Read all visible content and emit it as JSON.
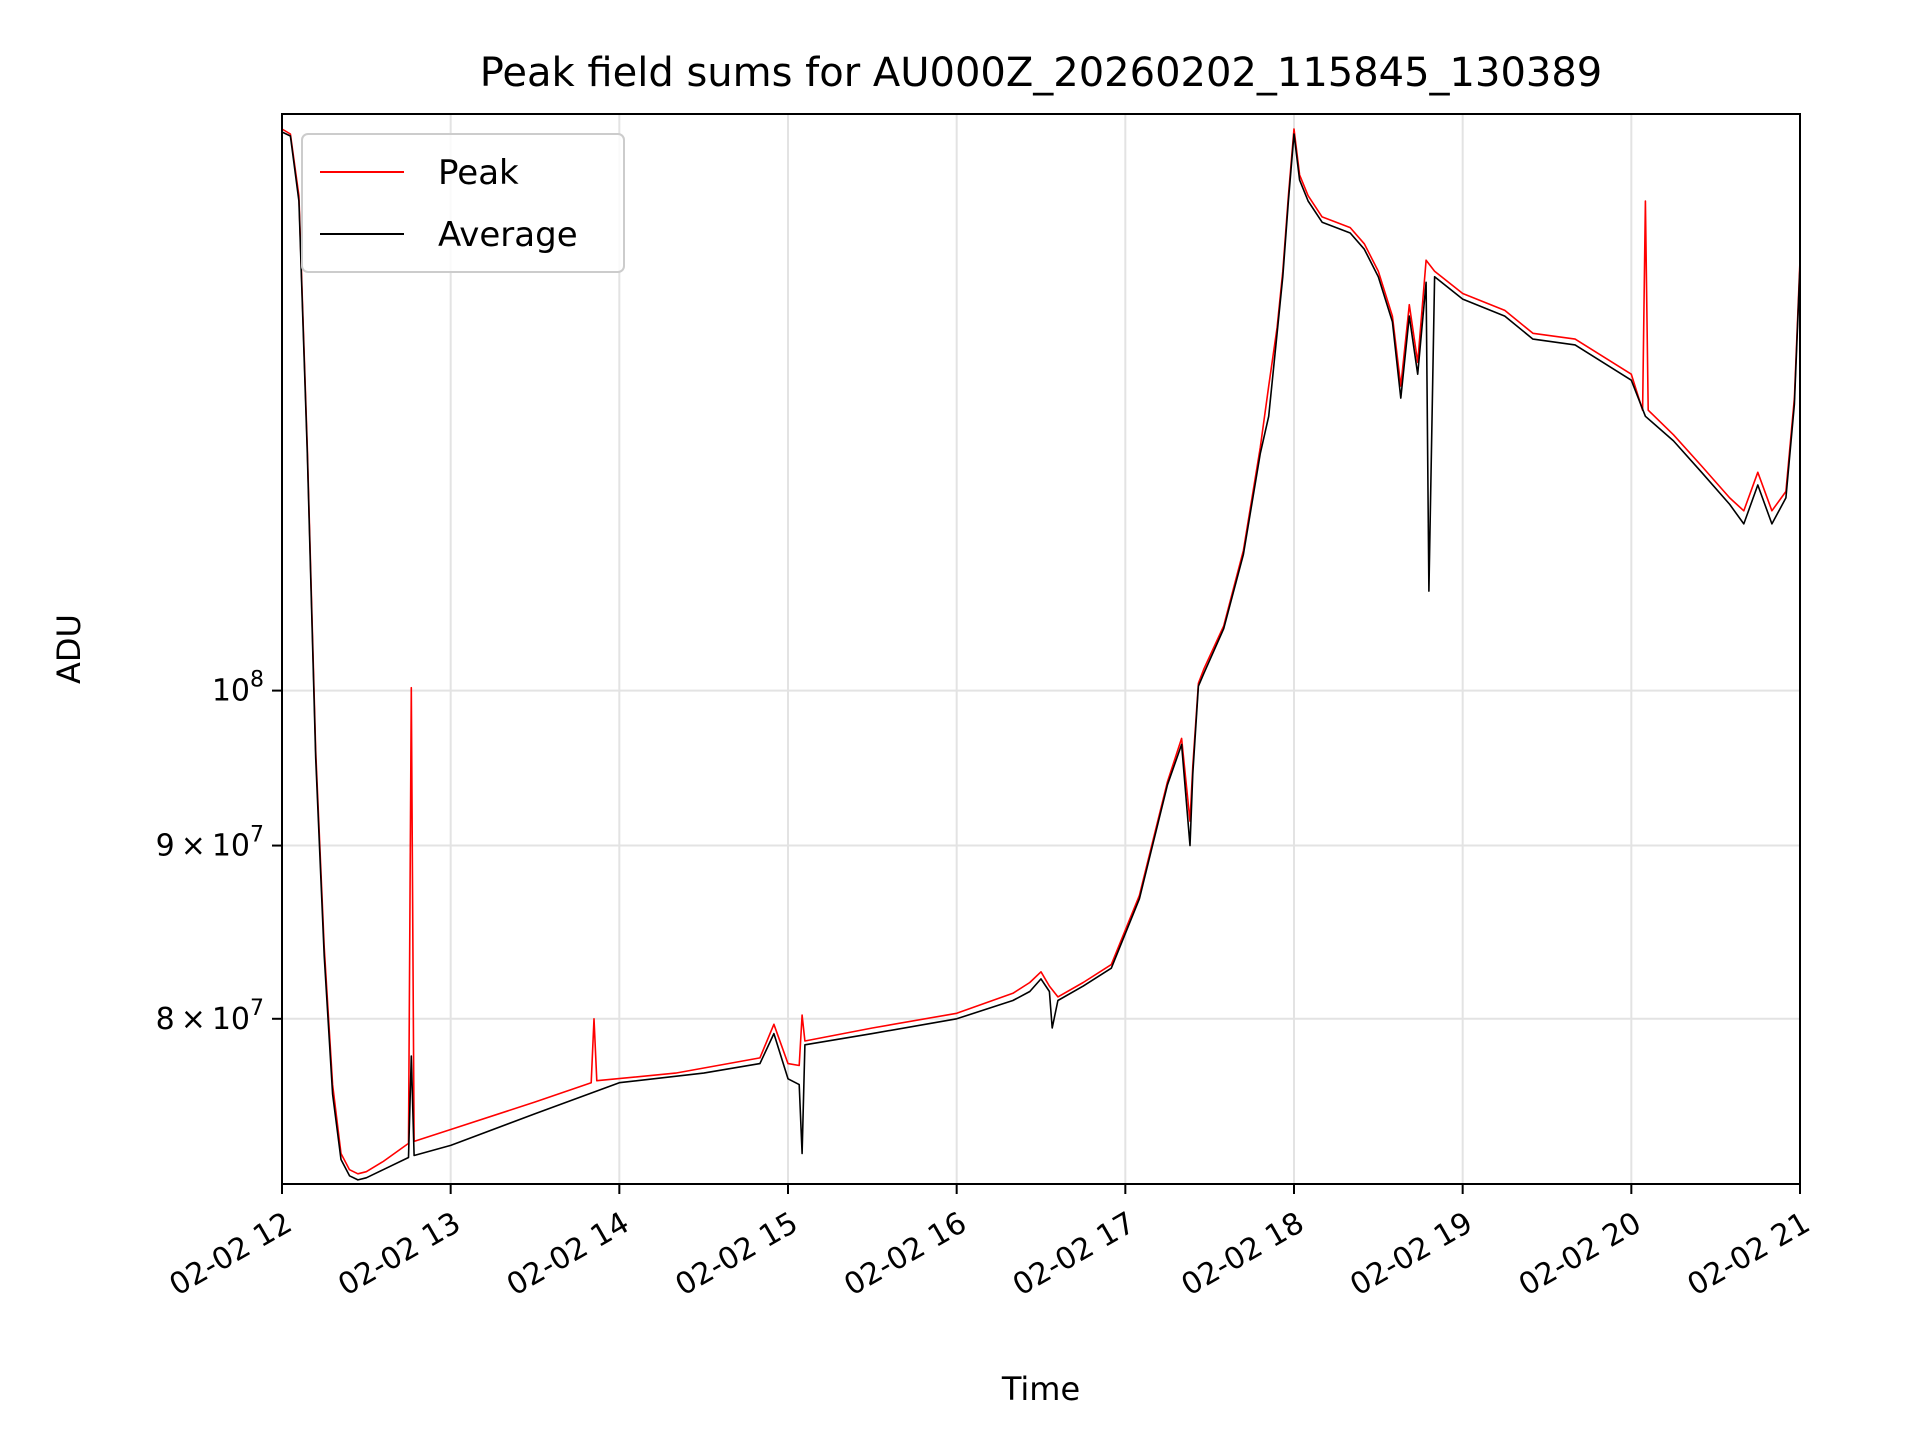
{
  "chart_data": {
    "type": "line",
    "title": "Peak field sums for AU000Z_20260202_115845_130389",
    "xlabel": "Time",
    "ylabel": "ADU",
    "yscale": "log",
    "grid": true,
    "legend_position": "top-left",
    "xlim": [
      "2026-02-02 12:00",
      "2026-02-02 21:00"
    ],
    "ylim": [
      71500000,
      148000000
    ],
    "x_ticks": [
      {
        "value": "2026-02-02 12:00",
        "label": "02-02 12"
      },
      {
        "value": "2026-02-02 13:00",
        "label": "02-02 13"
      },
      {
        "value": "2026-02-02 14:00",
        "label": "02-02 14"
      },
      {
        "value": "2026-02-02 15:00",
        "label": "02-02 15"
      },
      {
        "value": "2026-02-02 16:00",
        "label": "02-02 16"
      },
      {
        "value": "2026-02-02 17:00",
        "label": "02-02 17"
      },
      {
        "value": "2026-02-02 18:00",
        "label": "02-02 18"
      },
      {
        "value": "2026-02-02 19:00",
        "label": "02-02 19"
      },
      {
        "value": "2026-02-02 20:00",
        "label": "02-02 20"
      },
      {
        "value": "2026-02-02 21:00",
        "label": "02-02 21"
      }
    ],
    "y_ticks": [
      {
        "value": 80000000,
        "mantissa": "8",
        "exponent": "7"
      },
      {
        "value": 90000000,
        "mantissa": "9",
        "exponent": "7"
      },
      {
        "value": 100000000,
        "mantissa": "",
        "exponent": "8"
      }
    ],
    "series": [
      {
        "name": "Peak",
        "color": "#ff0000",
        "x": [
          "2026-02-02 12:00",
          "2026-02-02 12:03",
          "2026-02-02 12:06",
          "2026-02-02 12:09",
          "2026-02-02 12:12",
          "2026-02-02 12:15",
          "2026-02-02 12:18",
          "2026-02-02 12:21",
          "2026-02-02 12:24",
          "2026-02-02 12:27",
          "2026-02-02 12:30",
          "2026-02-02 12:36",
          "2026-02-02 12:45",
          "2026-02-02 12:46",
          "2026-02-02 12:47",
          "2026-02-02 13:00",
          "2026-02-02 13:30",
          "2026-02-02 13:50",
          "2026-02-02 13:51",
          "2026-02-02 13:52",
          "2026-02-02 14:20",
          "2026-02-02 14:50",
          "2026-02-02 14:55",
          "2026-02-02 15:00",
          "2026-02-02 15:04",
          "2026-02-02 15:05",
          "2026-02-02 15:06",
          "2026-02-02 15:30",
          "2026-02-02 16:00",
          "2026-02-02 16:20",
          "2026-02-02 16:26",
          "2026-02-02 16:30",
          "2026-02-02 16:33",
          "2026-02-02 16:36",
          "2026-02-02 16:45",
          "2026-02-02 16:55",
          "2026-02-02 17:05",
          "2026-02-02 17:15",
          "2026-02-02 17:20",
          "2026-02-02 17:23",
          "2026-02-02 17:24",
          "2026-02-02 17:26",
          "2026-02-02 17:28",
          "2026-02-02 17:35",
          "2026-02-02 17:42",
          "2026-02-02 17:48",
          "2026-02-02 17:51",
          "2026-02-02 17:54",
          "2026-02-02 17:56",
          "2026-02-02 17:58",
          "2026-02-02 18:00",
          "2026-02-02 18:02",
          "2026-02-02 18:05",
          "2026-02-02 18:10",
          "2026-02-02 18:15",
          "2026-02-02 18:20",
          "2026-02-02 18:25",
          "2026-02-02 18:30",
          "2026-02-02 18:35",
          "2026-02-02 18:38",
          "2026-02-02 18:41",
          "2026-02-02 18:44",
          "2026-02-02 18:47",
          "2026-02-02 18:50",
          "2026-02-02 19:00",
          "2026-02-02 19:15",
          "2026-02-02 19:25",
          "2026-02-02 19:40",
          "2026-02-02 20:00",
          "2026-02-02 20:04",
          "2026-02-02 20:05",
          "2026-02-02 20:06",
          "2026-02-02 20:15",
          "2026-02-02 20:25",
          "2026-02-02 20:35",
          "2026-02-02 20:40",
          "2026-02-02 20:45",
          "2026-02-02 20:50",
          "2026-02-02 20:55",
          "2026-02-02 20:58",
          "2026-02-02 21:00"
        ],
        "y": [
          146500000,
          146000000,
          140000000,
          118000000,
          96000000,
          84000000,
          76500000,
          73000000,
          72200000,
          72000000,
          72100000,
          72600000,
          73500000,
          100200000,
          73600000,
          74200000,
          75600000,
          76600000,
          80000000,
          76700000,
          77100000,
          77900000,
          79700000,
          77600000,
          77500000,
          80200000,
          78800000,
          79500000,
          80300000,
          81400000,
          82000000,
          82600000,
          81800000,
          81200000,
          82000000,
          83000000,
          87000000,
          94000000,
          96800000,
          91500000,
          95000000,
          100500000,
          101500000,
          104500000,
          110000000,
          118000000,
          123000000,
          128000000,
          133000000,
          140000000,
          146500000,
          142000000,
          140000000,
          138000000,
          137500000,
          137000000,
          135500000,
          133000000,
          129000000,
          123000000,
          130000000,
          125000000,
          134000000,
          133000000,
          131000000,
          129500000,
          127500000,
          127000000,
          124000000,
          121000000,
          139500000,
          121000000,
          119000000,
          116500000,
          114000000,
          113000000,
          116000000,
          113000000,
          114500000,
          122000000,
          134000000
        ]
      },
      {
        "name": "Average",
        "color": "#000000",
        "x": [
          "2026-02-02 12:00",
          "2026-02-02 12:03",
          "2026-02-02 12:06",
          "2026-02-02 12:09",
          "2026-02-02 12:12",
          "2026-02-02 12:15",
          "2026-02-02 12:18",
          "2026-02-02 12:21",
          "2026-02-02 12:24",
          "2026-02-02 12:27",
          "2026-02-02 12:30",
          "2026-02-02 12:36",
          "2026-02-02 12:45",
          "2026-02-02 12:46",
          "2026-02-02 12:47",
          "2026-02-02 13:00",
          "2026-02-02 13:30",
          "2026-02-02 14:00",
          "2026-02-02 14:30",
          "2026-02-02 14:50",
          "2026-02-02 14:55",
          "2026-02-02 15:00",
          "2026-02-02 15:04",
          "2026-02-02 15:05",
          "2026-02-02 15:06",
          "2026-02-02 15:30",
          "2026-02-02 16:00",
          "2026-02-02 16:20",
          "2026-02-02 16:26",
          "2026-02-02 16:30",
          "2026-02-02 16:33",
          "2026-02-02 16:34",
          "2026-02-02 16:36",
          "2026-02-02 16:45",
          "2026-02-02 16:55",
          "2026-02-02 17:05",
          "2026-02-02 17:15",
          "2026-02-02 17:20",
          "2026-02-02 17:23",
          "2026-02-02 17:24",
          "2026-02-02 17:26",
          "2026-02-02 17:28",
          "2026-02-02 17:35",
          "2026-02-02 17:42",
          "2026-02-02 17:48",
          "2026-02-02 17:51",
          "2026-02-02 17:54",
          "2026-02-02 17:56",
          "2026-02-02 17:58",
          "2026-02-02 18:00",
          "2026-02-02 18:02",
          "2026-02-02 18:05",
          "2026-02-02 18:10",
          "2026-02-02 18:15",
          "2026-02-02 18:20",
          "2026-02-02 18:25",
          "2026-02-02 18:30",
          "2026-02-02 18:35",
          "2026-02-02 18:38",
          "2026-02-02 18:41",
          "2026-02-02 18:44",
          "2026-02-02 18:47",
          "2026-02-02 18:48",
          "2026-02-02 18:50",
          "2026-02-02 19:00",
          "2026-02-02 19:15",
          "2026-02-02 19:25",
          "2026-02-02 19:40",
          "2026-02-02 20:00",
          "2026-02-02 20:05",
          "2026-02-02 20:15",
          "2026-02-02 20:25",
          "2026-02-02 20:35",
          "2026-02-02 20:40",
          "2026-02-02 20:45",
          "2026-02-02 20:50",
          "2026-02-02 20:55",
          "2026-02-02 20:58",
          "2026-02-02 21:00"
        ],
        "y": [
          146200000,
          145800000,
          139500000,
          117500000,
          95500000,
          83500000,
          76000000,
          72700000,
          71900000,
          71700000,
          71800000,
          72200000,
          72800000,
          78000000,
          72900000,
          73400000,
          75000000,
          76600000,
          77100000,
          77600000,
          79200000,
          76800000,
          76500000,
          73000000,
          78600000,
          79200000,
          80000000,
          81000000,
          81500000,
          82200000,
          81500000,
          79500000,
          81000000,
          81800000,
          82800000,
          86800000,
          93800000,
          96400000,
          90000000,
          94500000,
          100300000,
          101200000,
          104300000,
          109700000,
          117500000,
          120500000,
          127500000,
          132500000,
          139500000,
          146000000,
          141500000,
          139500000,
          137500000,
          137000000,
          136500000,
          135000000,
          132500000,
          128500000,
          122000000,
          129000000,
          124000000,
          132000000,
          107000000,
          132500000,
          130500000,
          129000000,
          127000000,
          126500000,
          123500000,
          120500000,
          118500000,
          116000000,
          113500000,
          112000000,
          115000000,
          112000000,
          114000000,
          121500000,
          133500000
        ]
      }
    ]
  }
}
